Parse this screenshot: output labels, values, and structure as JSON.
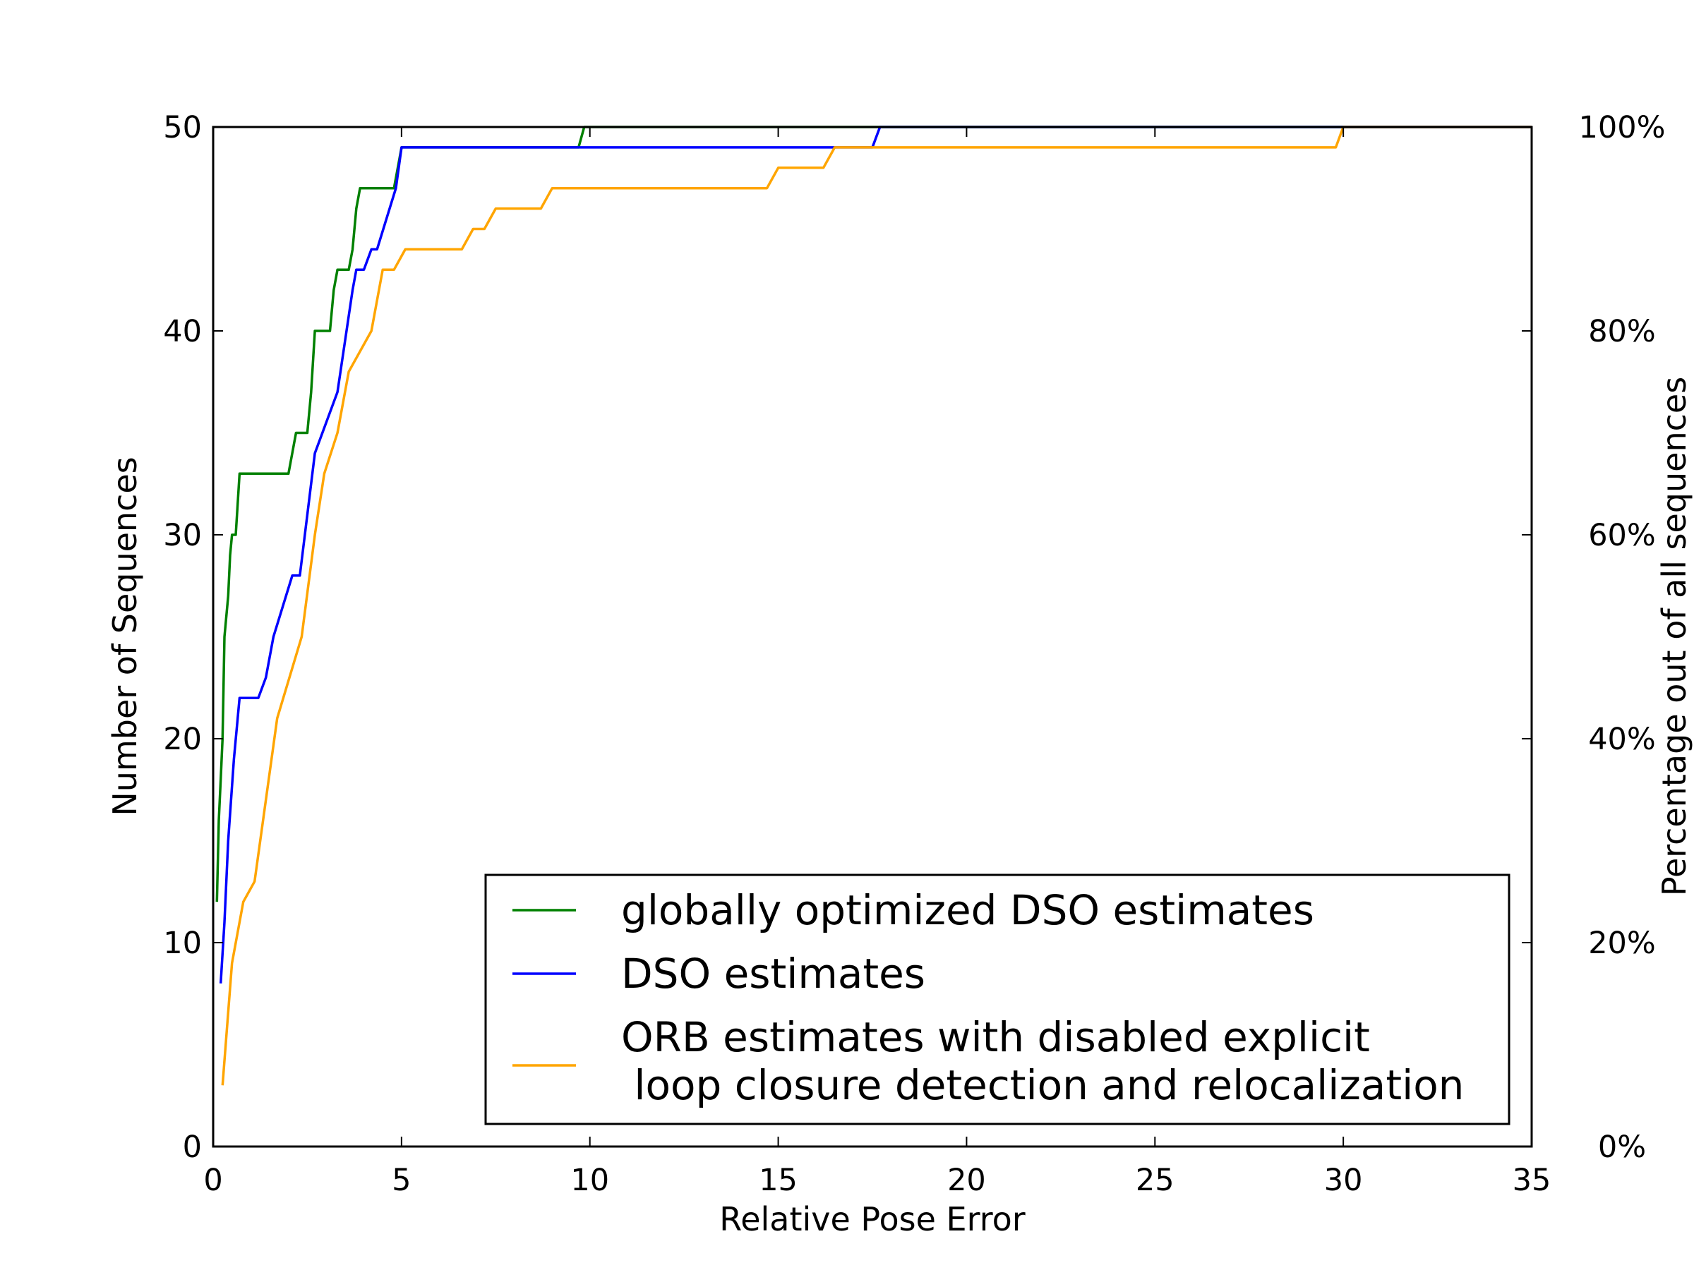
{
  "chart_data": {
    "type": "line",
    "title": "",
    "xlabel": "Relative Pose Error",
    "ylabel": "Number of Sequences",
    "ylabel_right": "Percentage out of all sequences",
    "xlim": [
      0,
      35
    ],
    "ylim": [
      0,
      50
    ],
    "xticks": [
      0,
      5,
      10,
      15,
      20,
      25,
      30,
      35
    ],
    "yticks": [
      0,
      10,
      20,
      30,
      40,
      50
    ],
    "right_yticks": [
      "0%",
      "20%",
      "40%",
      "60%",
      "80%",
      "100%"
    ],
    "grid": false,
    "legend_position": "lower-right",
    "series": [
      {
        "name": "globally optimized DSO estimates",
        "color": "#008000",
        "points": [
          [
            0.1,
            12
          ],
          [
            0.15,
            16
          ],
          [
            0.2,
            18
          ],
          [
            0.25,
            20
          ],
          [
            0.3,
            25
          ],
          [
            0.4,
            27
          ],
          [
            0.45,
            29
          ],
          [
            0.5,
            30
          ],
          [
            0.6,
            30
          ],
          [
            0.7,
            33
          ],
          [
            2.0,
            33
          ],
          [
            2.2,
            35
          ],
          [
            2.5,
            35
          ],
          [
            2.6,
            37
          ],
          [
            2.7,
            40
          ],
          [
            3.1,
            40
          ],
          [
            3.2,
            42
          ],
          [
            3.3,
            43
          ],
          [
            3.6,
            43
          ],
          [
            3.7,
            44
          ],
          [
            3.8,
            46
          ],
          [
            3.9,
            47
          ],
          [
            4.8,
            47
          ],
          [
            5.0,
            49
          ],
          [
            9.7,
            49
          ],
          [
            9.85,
            50
          ],
          [
            35,
            50
          ]
        ]
      },
      {
        "name": "DSO estimates",
        "color": "#0000ff",
        "points": [
          [
            0.2,
            8
          ],
          [
            0.3,
            11
          ],
          [
            0.4,
            15
          ],
          [
            0.55,
            19
          ],
          [
            0.7,
            22
          ],
          [
            1.2,
            22
          ],
          [
            1.4,
            23
          ],
          [
            1.6,
            25
          ],
          [
            2.1,
            28
          ],
          [
            2.3,
            28
          ],
          [
            2.7,
            34
          ],
          [
            3.3,
            37
          ],
          [
            3.7,
            42
          ],
          [
            3.8,
            43
          ],
          [
            4.0,
            43
          ],
          [
            4.2,
            44
          ],
          [
            4.35,
            44
          ],
          [
            4.85,
            47
          ],
          [
            5.0,
            49
          ],
          [
            17.5,
            49
          ],
          [
            17.7,
            50
          ],
          [
            35,
            50
          ]
        ]
      },
      {
        "name": "ORB estimates with disabled explicit\n loop closure detection and relocalization",
        "color": "#ffa500",
        "points": [
          [
            0.25,
            3
          ],
          [
            0.5,
            9
          ],
          [
            0.8,
            12
          ],
          [
            1.1,
            13
          ],
          [
            1.7,
            21
          ],
          [
            2.35,
            25
          ],
          [
            2.7,
            30
          ],
          [
            2.95,
            33
          ],
          [
            3.3,
            35
          ],
          [
            3.6,
            38
          ],
          [
            4.2,
            40
          ],
          [
            4.5,
            43
          ],
          [
            4.8,
            43
          ],
          [
            5.1,
            44
          ],
          [
            6.6,
            44
          ],
          [
            6.9,
            45
          ],
          [
            7.2,
            45
          ],
          [
            7.5,
            46
          ],
          [
            8.7,
            46
          ],
          [
            9.0,
            47
          ],
          [
            14.7,
            47
          ],
          [
            15.0,
            48
          ],
          [
            16.2,
            48
          ],
          [
            16.5,
            49
          ],
          [
            29.8,
            49
          ],
          [
            30.0,
            50
          ],
          [
            35,
            50
          ]
        ]
      }
    ]
  }
}
